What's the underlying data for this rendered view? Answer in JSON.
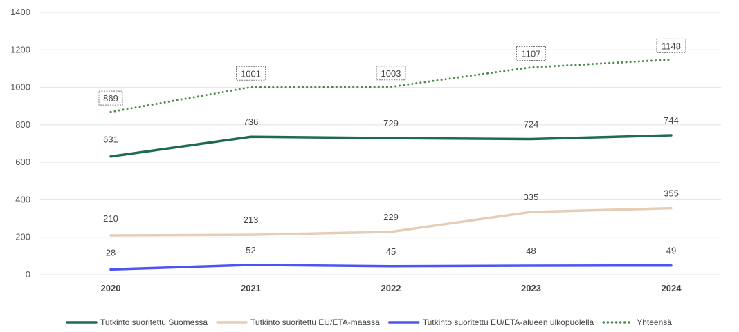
{
  "chart_data": {
    "type": "line",
    "title": "",
    "xlabel": "",
    "ylabel": "",
    "ylim": [
      0,
      1400
    ],
    "yticks": [
      0,
      200,
      400,
      600,
      800,
      1000,
      1200,
      1400
    ],
    "grid": "horizontal",
    "legend_position": "bottom",
    "categories": [
      "2020",
      "2021",
      "2022",
      "2023",
      "2024"
    ],
    "series": [
      {
        "name": "Tutkinto suoritettu Suomessa",
        "values": [
          631,
          736,
          729,
          724,
          744
        ],
        "color": "#1e6b52",
        "style": "solid",
        "boxed_labels": false
      },
      {
        "name": "Tutkinto suoritettu EU/ETA-maassa",
        "values": [
          210,
          213,
          229,
          335,
          355
        ],
        "color": "#e6cdb6",
        "style": "solid",
        "boxed_labels": false
      },
      {
        "name": "Tutkinto suoritettu EU/ETA-alueen ulkopuolella",
        "values": [
          28,
          52,
          45,
          48,
          49
        ],
        "color": "#4c55f2",
        "style": "solid",
        "boxed_labels": false
      },
      {
        "name": "Yhteensä",
        "values": [
          869,
          1001,
          1003,
          1107,
          1148
        ],
        "color": "#4e8a4e",
        "style": "dotted",
        "boxed_labels": true
      }
    ]
  }
}
